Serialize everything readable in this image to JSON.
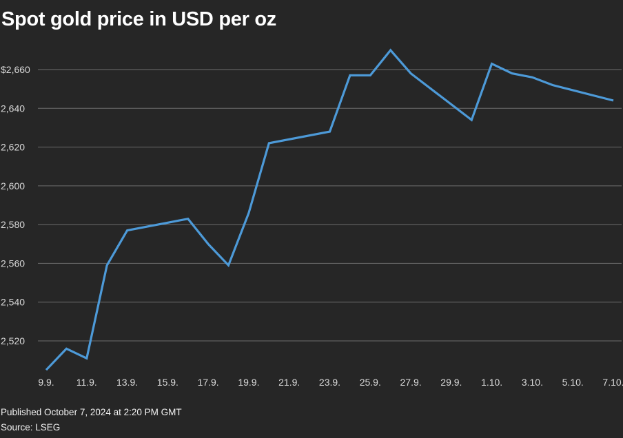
{
  "title": "Spot gold price in USD per oz",
  "footer": {
    "published": "Published October 7, 2024 at 2:20 PM GMT",
    "source": "Source: LSEG"
  },
  "colors": {
    "background": "#262626",
    "line": "#4d9ad8",
    "grid": "#6e6e6e",
    "text": "#d9d9d9"
  },
  "chart_data": {
    "type": "line",
    "title": "Spot gold price in USD per oz",
    "xlabel": "",
    "ylabel": "",
    "grid": true,
    "ylim": [
      2502,
      2675
    ],
    "y_ticks": [
      {
        "value": 2520,
        "label": "2,520"
      },
      {
        "value": 2540,
        "label": "2,540"
      },
      {
        "value": 2560,
        "label": "2,560"
      },
      {
        "value": 2580,
        "label": "2,580"
      },
      {
        "value": 2600,
        "label": "2,600"
      },
      {
        "value": 2620,
        "label": "2,620"
      },
      {
        "value": 2640,
        "label": "2,640"
      },
      {
        "value": 2660,
        "label": "$2,660"
      }
    ],
    "x_ticks": [
      "9.9.",
      "11.9.",
      "13.9.",
      "15.9.",
      "17.9.",
      "19.9.",
      "21.9.",
      "23.9.",
      "25.9.",
      "27.9.",
      "29.9.",
      "1.10.",
      "3.10.",
      "5.10.",
      "7.10."
    ],
    "series": [
      {
        "x": [
          "2024-09-09",
          "2024-09-10",
          "2024-09-11",
          "2024-09-12",
          "2024-09-13",
          "2024-09-16",
          "2024-09-17",
          "2024-09-18",
          "2024-09-19",
          "2024-09-20",
          "2024-09-23",
          "2024-09-24",
          "2024-09-25",
          "2024-09-26",
          "2024-09-27",
          "2024-09-30",
          "2024-10-01",
          "2024-10-02",
          "2024-10-03",
          "2024-10-04",
          "2024-10-07"
        ],
        "values": [
          2505,
          2516,
          2511,
          2559,
          2577,
          2583,
          2570,
          2559,
          2586,
          2622,
          2628,
          2657,
          2657,
          2670,
          2658,
          2634,
          2663,
          2658,
          2656,
          2652,
          2644
        ]
      }
    ]
  }
}
